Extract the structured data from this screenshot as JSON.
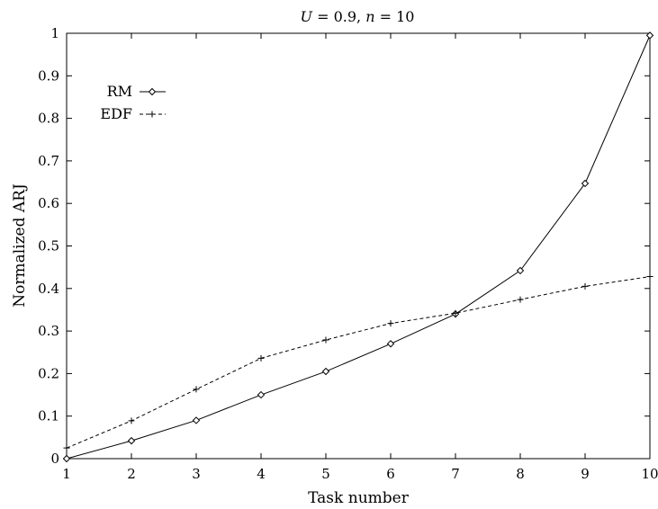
{
  "chart_data": {
    "type": "line",
    "title": "U = 0.9, n = 10",
    "xlabel": "Task number",
    "ylabel": "Normalized ARJ",
    "xlim": [
      1,
      10
    ],
    "ylim": [
      0,
      1
    ],
    "x": [
      1,
      2,
      3,
      4,
      5,
      6,
      7,
      8,
      9,
      10
    ],
    "xticks": [
      "1",
      "2",
      "3",
      "4",
      "5",
      "6",
      "7",
      "8",
      "9",
      "10"
    ],
    "yticks": [
      "0",
      "0.1",
      "0.2",
      "0.3",
      "0.4",
      "0.5",
      "0.6",
      "0.7",
      "0.8",
      "0.9",
      "1"
    ],
    "grid": false,
    "legend_position": "top-left",
    "series": [
      {
        "name": "RM",
        "values": [
          0.0,
          0.042,
          0.09,
          0.15,
          0.205,
          0.27,
          0.34,
          0.442,
          0.647,
          0.995
        ],
        "line_style": "solid",
        "marker": "diamond",
        "color": "#000000"
      },
      {
        "name": "EDF",
        "values": [
          0.025,
          0.089,
          0.163,
          0.236,
          0.279,
          0.318,
          0.342,
          0.374,
          0.405,
          0.428
        ],
        "line_style": "dashed",
        "marker": "plus",
        "color": "#000000"
      }
    ]
  }
}
